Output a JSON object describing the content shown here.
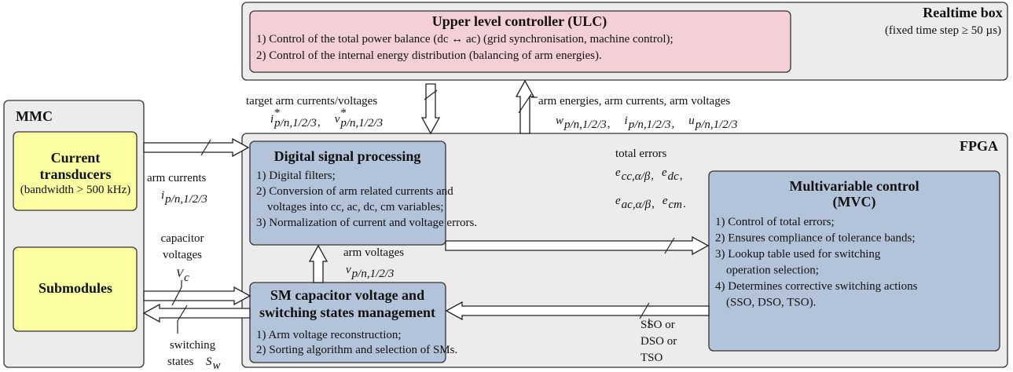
{
  "realtime_box": {
    "title": "Realtime box",
    "note": "(fixed time step ≥ 50 µs)"
  },
  "ulc": {
    "title": "Upper level controller (ULC)",
    "items": [
      [
        "1) Control of the total power balance (dc ↔ ac) (grid synchronisation, machine control);"
      ],
      [
        "2) Control of the internal energy distribution (balancing of arm energies)."
      ]
    ]
  },
  "mmc": {
    "title": "MMC"
  },
  "current_transducers": {
    "title": [
      "Current",
      "transducers"
    ],
    "note": "(bandwidth > 500 kHz)"
  },
  "submodules": {
    "title": "Submodules"
  },
  "fpga": {
    "title": "FPGA"
  },
  "dsp": {
    "title": "Digital signal processing",
    "items": [
      [
        "1) Digital filters;"
      ],
      [
        "2) Conversion of arm related currents and",
        "voltages into  cc, ac, dc, cm variables;"
      ],
      [
        "3) Normalization of current and voltage errors."
      ]
    ]
  },
  "sm_management": {
    "title": [
      "SM capacitor voltage and",
      "switching states management"
    ],
    "items": [
      [
        "1) Arm voltage reconstruction;"
      ],
      [
        "2) Sorting algorithm and selection of SMs."
      ]
    ]
  },
  "mvc": {
    "title": [
      "Multivariable control",
      "(MVC)"
    ],
    "items": [
      [
        "1) Control of total errors;"
      ],
      [
        "2) Ensures compliance of tolerance bands;"
      ],
      [
        "3) Lookup table used for switching",
        "operation selection;"
      ],
      [
        "4) Determines corrective switching actions",
        "(SSO, DSO, TSO)."
      ]
    ]
  },
  "signals": {
    "target": {
      "label": [
        "target arm currents/voltages"
      ],
      "rows": [
        [
          {
            "base": "i",
            "sup": "*",
            "sub": "p/n,1/2/3",
            "after": ","
          },
          {
            "base": "v",
            "sup": "*",
            "sub": "p/n,1/2/3"
          }
        ]
      ]
    },
    "feedback": {
      "label": [
        "arm energies, arm currents, arm voltages"
      ],
      "rows": [
        [
          {
            "base": "w",
            "sub": "p/n,1/2/3",
            "after": ","
          },
          {
            "base": "i",
            "sub": "p/n,1/2/3",
            "after": ","
          },
          {
            "base": "u",
            "sub": "p/n,1/2/3"
          }
        ]
      ]
    },
    "arm_currents": {
      "label": [
        "arm currents"
      ],
      "rows": [
        [
          {
            "base": "i",
            "sub": "p/n,1/2/3"
          }
        ]
      ]
    },
    "capacitor_voltages": {
      "label": [
        "capacitor",
        "voltages"
      ],
      "rows": [
        [
          {
            "base": "V",
            "sub": "c"
          }
        ]
      ]
    },
    "switching_states": {
      "label": [
        "switching",
        "states"
      ],
      "rows": [
        [
          {
            "base": "S",
            "sub": "w"
          }
        ]
      ]
    },
    "arm_voltages": {
      "label": [
        "arm voltages"
      ],
      "rows": [
        [
          {
            "base": "v",
            "sub": "p/n,1/2/3"
          }
        ]
      ]
    },
    "total_errors": {
      "label": [
        "total errors"
      ],
      "rows": [
        [
          {
            "base": "e",
            "sub": "cc,α/β",
            "after": ","
          },
          {
            "base": "e",
            "sub": "dc",
            "after": ","
          }
        ],
        [
          {
            "base": "e",
            "sub": "ac,α/β",
            "after": ","
          },
          {
            "base": "e",
            "sub": "cm",
            "after": "."
          }
        ]
      ]
    },
    "switching_orders": {
      "label": [
        "SSO or",
        "DSO or",
        "TSO"
      ]
    }
  }
}
